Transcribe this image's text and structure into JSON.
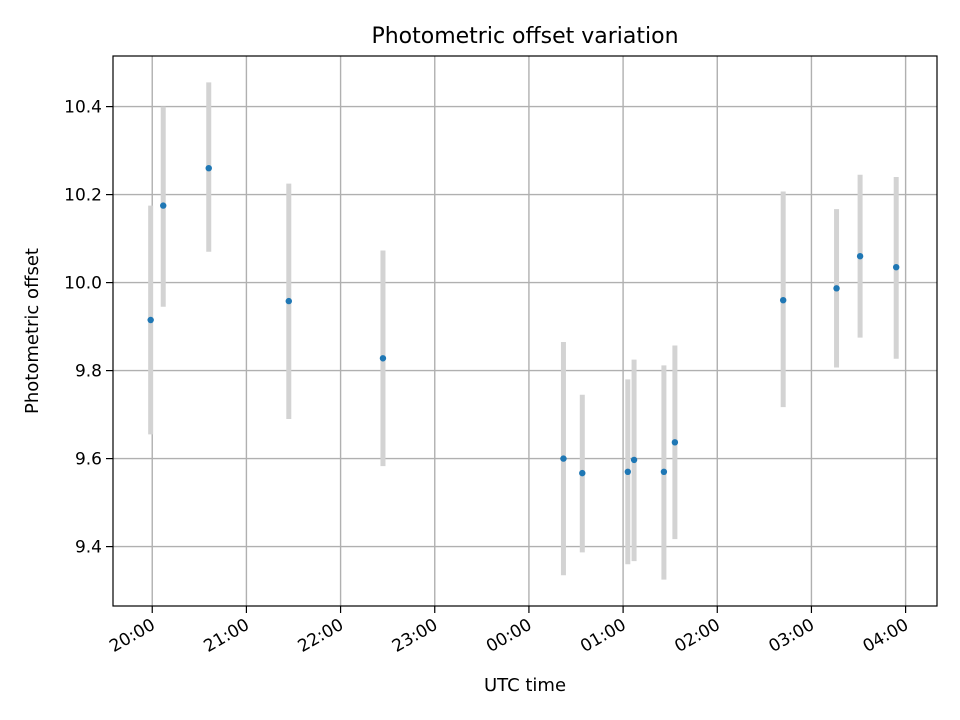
{
  "chart_data": {
    "type": "scatter",
    "title": "Photometric offset variation",
    "xlabel": "UTC time",
    "ylabel": "Photometric offset",
    "grid": true,
    "x_axis_kind": "time",
    "x_range": [
      "19:35",
      "04:20"
    ],
    "ylim": [
      9.265,
      10.515
    ],
    "x_tick_labels": [
      "20:00",
      "21:00",
      "22:00",
      "23:00",
      "00:00",
      "01:00",
      "02:00",
      "03:00",
      "04:00"
    ],
    "y_tick_labels": [
      "9.4",
      "9.6",
      "9.8",
      "10.0",
      "10.2",
      "10.4"
    ],
    "marker_color": "#1f77b4",
    "errorbar_color": "#d3d3d3",
    "series": [
      {
        "points": [
          {
            "x": "19:59",
            "y": 9.915,
            "err_low": 9.655,
            "err_high": 10.175
          },
          {
            "x": "20:07",
            "y": 10.175,
            "err_low": 9.945,
            "err_high": 10.4
          },
          {
            "x": "20:36",
            "y": 10.26,
            "err_low": 10.07,
            "err_high": 10.455
          },
          {
            "x": "21:27",
            "y": 9.958,
            "err_low": 9.69,
            "err_high": 10.225
          },
          {
            "x": "22:27",
            "y": 9.828,
            "err_low": 9.583,
            "err_high": 10.073
          },
          {
            "x": "00:22",
            "y": 9.6,
            "err_low": 9.335,
            "err_high": 9.865
          },
          {
            "x": "00:34",
            "y": 9.567,
            "err_low": 9.387,
            "err_high": 9.745
          },
          {
            "x": "01:03",
            "y": 9.57,
            "err_low": 9.36,
            "err_high": 9.78
          },
          {
            "x": "01:07",
            "y": 9.597,
            "err_low": 9.367,
            "err_high": 9.825
          },
          {
            "x": "01:26",
            "y": 9.57,
            "err_low": 9.325,
            "err_high": 9.812
          },
          {
            "x": "01:33",
            "y": 9.637,
            "err_low": 9.417,
            "err_high": 9.857
          },
          {
            "x": "02:42",
            "y": 9.96,
            "err_low": 9.717,
            "err_high": 10.207
          },
          {
            "x": "03:16",
            "y": 9.987,
            "err_low": 9.807,
            "err_high": 10.167
          },
          {
            "x": "03:31",
            "y": 10.06,
            "err_low": 9.875,
            "err_high": 10.245
          },
          {
            "x": "03:54",
            "y": 10.035,
            "err_low": 9.827,
            "err_high": 10.24
          }
        ]
      }
    ]
  }
}
